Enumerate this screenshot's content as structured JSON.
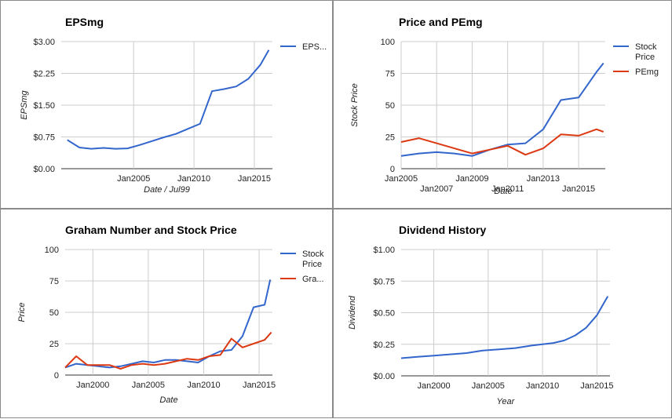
{
  "colors": {
    "blue": "#3366cc",
    "red": "#dc3912",
    "grid": "#cccccc"
  },
  "chart_data": [
    {
      "id": "eps",
      "type": "line",
      "title": "EPSmg",
      "xlabel": "Date / Jul99",
      "ylabel": "EPSmg",
      "xlim": [
        1999.0,
        2016.5
      ],
      "ylim": [
        0,
        3
      ],
      "yticks": [
        {
          "v": 0,
          "label": "$0.00"
        },
        {
          "v": 0.75,
          "label": "$0.75"
        },
        {
          "v": 1.5,
          "label": "$1.50"
        },
        {
          "v": 2.25,
          "label": "$2.25"
        },
        {
          "v": 3,
          "label": "$3.00"
        }
      ],
      "xticks": [
        {
          "v": 2005,
          "label": "Jan2005",
          "row": 0
        },
        {
          "v": 2010,
          "label": "Jan2010",
          "row": 0
        },
        {
          "v": 2015,
          "label": "Jan2015",
          "row": 0
        }
      ],
      "xgrid": [
        2005,
        2010,
        2015
      ],
      "legend_position": "right",
      "series": [
        {
          "name": "EPS...",
          "color": "#3366cc",
          "x": [
            1999.5,
            2000.5,
            2001.5,
            2002.5,
            2003.5,
            2004.5,
            2005.5,
            2006.5,
            2007.5,
            2008.5,
            2009.5,
            2010.5,
            2011.5,
            2012.5,
            2013.5,
            2014.5,
            2015.5,
            2016.2
          ],
          "y": [
            0.68,
            0.5,
            0.47,
            0.49,
            0.47,
            0.48,
            0.56,
            0.65,
            0.74,
            0.82,
            0.94,
            1.06,
            1.83,
            1.88,
            1.94,
            2.12,
            2.45,
            2.8
          ]
        }
      ]
    },
    {
      "id": "price",
      "type": "line",
      "title": "Price and PEmg",
      "xlabel": "Date",
      "ylabel": "Stock Price",
      "xlim": [
        2005.0,
        2016.5
      ],
      "ylim": [
        0,
        100
      ],
      "yticks": [
        {
          "v": 0,
          "label": "0"
        },
        {
          "v": 25,
          "label": "25"
        },
        {
          "v": 50,
          "label": "50"
        },
        {
          "v": 75,
          "label": "75"
        },
        {
          "v": 100,
          "label": "100"
        }
      ],
      "xticks": [
        {
          "v": 2005,
          "label": "Jan2005",
          "row": 0
        },
        {
          "v": 2007,
          "label": "Jan2007",
          "row": 1
        },
        {
          "v": 2009,
          "label": "Jan2009",
          "row": 0
        },
        {
          "v": 2011,
          "label": "Jan2011",
          "row": 1
        },
        {
          "v": 2013,
          "label": "Jan2013",
          "row": 0
        },
        {
          "v": 2015,
          "label": "Jan2015",
          "row": 1
        }
      ],
      "xgrid": [
        2005,
        2007,
        2009,
        2011,
        2013,
        2015
      ],
      "legend_position": "right",
      "series": [
        {
          "name": "Stock Price",
          "color": "#3366cc",
          "x": [
            2005.0,
            2006.0,
            2007.0,
            2008.0,
            2009.0,
            2010.0,
            2011.0,
            2012.0,
            2013.0,
            2014.0,
            2015.0,
            2016.0,
            2016.4
          ],
          "y": [
            10,
            12,
            13,
            12,
            10,
            15,
            19,
            20,
            31,
            54,
            56,
            76,
            83
          ]
        },
        {
          "name": "PEmg",
          "color": "#dc3912",
          "x": [
            2005.0,
            2006.0,
            2007.0,
            2008.0,
            2009.0,
            2010.0,
            2011.0,
            2012.0,
            2013.0,
            2014.0,
            2015.0,
            2016.0,
            2016.4
          ],
          "y": [
            21,
            24,
            20,
            16,
            12,
            15,
            18,
            11,
            16,
            27,
            26,
            31,
            29
          ]
        }
      ]
    },
    {
      "id": "graham",
      "type": "line",
      "title": "Graham Number and Stock Price",
      "xlabel": "Date",
      "ylabel": "Price",
      "xlim": [
        1997.5,
        2016.2
      ],
      "ylim": [
        0,
        100
      ],
      "yticks": [
        {
          "v": 0,
          "label": "0"
        },
        {
          "v": 25,
          "label": "25"
        },
        {
          "v": 50,
          "label": "50"
        },
        {
          "v": 75,
          "label": "75"
        },
        {
          "v": 100,
          "label": "100"
        }
      ],
      "xticks": [
        {
          "v": 2000,
          "label": "Jan2000",
          "row": 0
        },
        {
          "v": 2005,
          "label": "Jan2005",
          "row": 0
        },
        {
          "v": 2010,
          "label": "Jan2010",
          "row": 0
        },
        {
          "v": 2015,
          "label": "Jan2015",
          "row": 0
        }
      ],
      "xgrid": [
        2000,
        2005,
        2010,
        2015
      ],
      "legend_position": "right",
      "series": [
        {
          "name": "Stock Price",
          "color": "#3366cc",
          "x": [
            1997.5,
            1998.5,
            1999.5,
            2000.5,
            2001.5,
            2002.5,
            2003.5,
            2004.5,
            2005.5,
            2006.5,
            2007.5,
            2008.5,
            2009.5,
            2010.5,
            2011.5,
            2012.5,
            2013.5,
            2014.5,
            2015.5,
            2016.0
          ],
          "y": [
            6,
            9,
            8,
            7,
            6,
            7,
            9,
            11,
            10,
            12,
            12,
            11,
            10,
            15,
            19,
            20,
            31,
            54,
            56,
            76
          ]
        },
        {
          "name": "Gra...",
          "color": "#dc3912",
          "x": [
            1997.5,
            1998.5,
            1999.5,
            2000.5,
            2001.5,
            2002.5,
            2003.5,
            2004.5,
            2005.5,
            2006.5,
            2007.5,
            2008.5,
            2009.5,
            2010.5,
            2011.5,
            2012.5,
            2013.5,
            2014.5,
            2015.5,
            2016.1
          ],
          "y": [
            6,
            15,
            8,
            8,
            8,
            5,
            8,
            9,
            8,
            9,
            11,
            13,
            12,
            15,
            16,
            29,
            22,
            25,
            28,
            34
          ]
        }
      ]
    },
    {
      "id": "dividend",
      "type": "line",
      "title": "Dividend History",
      "xlabel": "Year",
      "ylabel": "Dividend",
      "xlim": [
        1997.0,
        2016.2
      ],
      "ylim": [
        0,
        1
      ],
      "yticks": [
        {
          "v": 0,
          "label": "$0.00"
        },
        {
          "v": 0.25,
          "label": "$0.25"
        },
        {
          "v": 0.5,
          "label": "$0.50"
        },
        {
          "v": 0.75,
          "label": "$0.75"
        },
        {
          "v": 1,
          "label": "$1.00"
        }
      ],
      "xticks": [
        {
          "v": 2000,
          "label": "Jan2000",
          "row": 0
        },
        {
          "v": 2005,
          "label": "Jan2005",
          "row": 0
        },
        {
          "v": 2010,
          "label": "Jan2010",
          "row": 0
        },
        {
          "v": 2015,
          "label": "Jan2015",
          "row": 0
        }
      ],
      "xgrid": [
        2000,
        2005,
        2010,
        2015
      ],
      "legend_position": "none",
      "series": [
        {
          "name": "",
          "color": "#3366cc",
          "x": [
            1997.0,
            1998.5,
            2000.0,
            2001.5,
            2003.0,
            2004.5,
            2006.0,
            2007.5,
            2009.0,
            2010.0,
            2011.0,
            2012.0,
            2013.0,
            2014.0,
            2015.0,
            2016.0
          ],
          "y": [
            0.14,
            0.15,
            0.16,
            0.17,
            0.18,
            0.2,
            0.21,
            0.22,
            0.24,
            0.25,
            0.26,
            0.28,
            0.32,
            0.38,
            0.48,
            0.63
          ]
        }
      ]
    }
  ]
}
